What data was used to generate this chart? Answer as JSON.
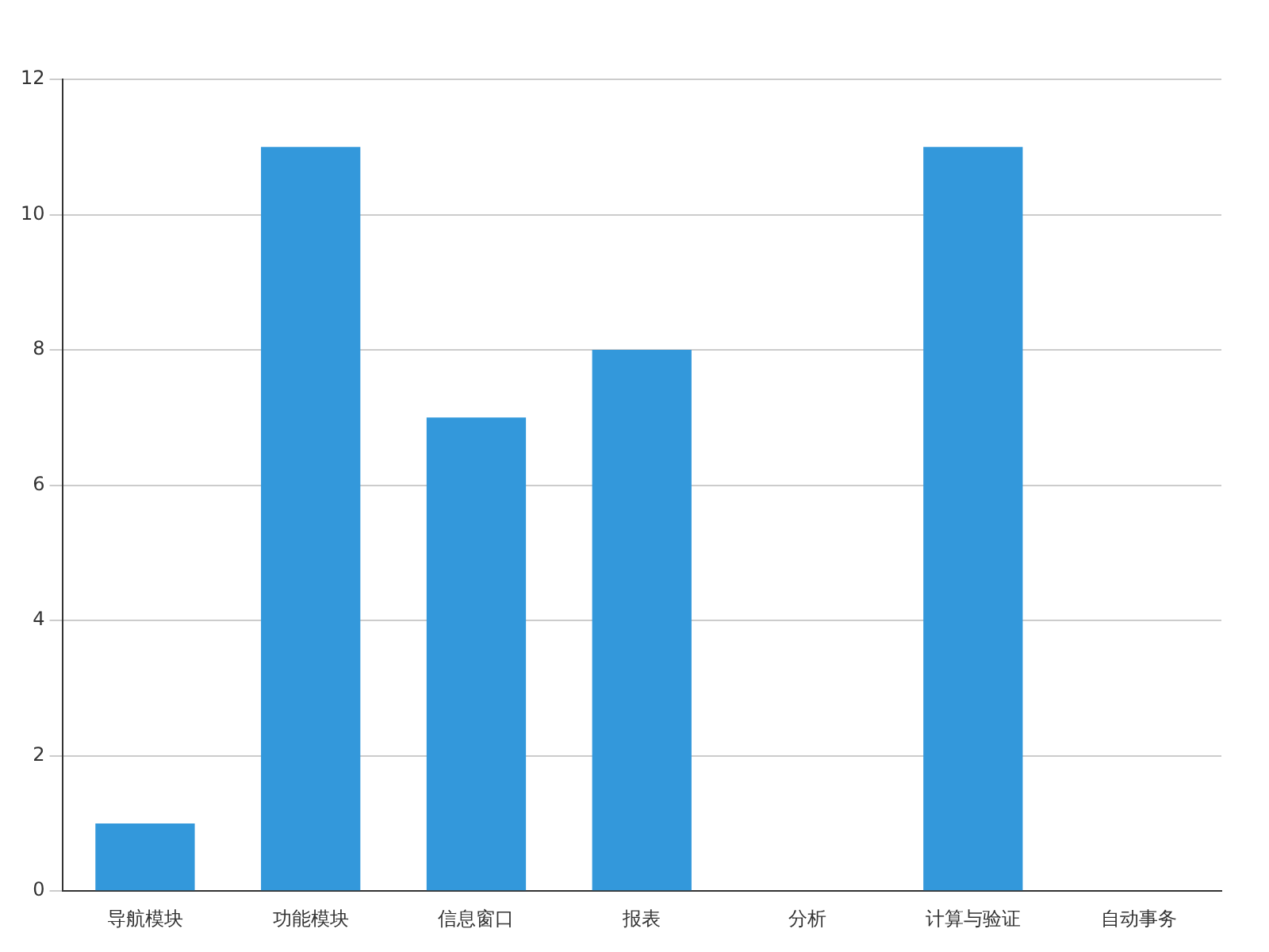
{
  "chart_data": {
    "type": "bar",
    "categories": [
      "导航模块",
      "功能模块",
      "信息窗口",
      "报表",
      "分析",
      "计算与验证",
      "自动事务"
    ],
    "values": [
      1,
      11,
      7,
      8,
      0,
      11,
      0
    ],
    "color": "#3398db",
    "ylim": [
      0,
      12
    ],
    "yticks": [
      0,
      2,
      4,
      6,
      8,
      10,
      12
    ],
    "grid": "y",
    "legend": false
  }
}
